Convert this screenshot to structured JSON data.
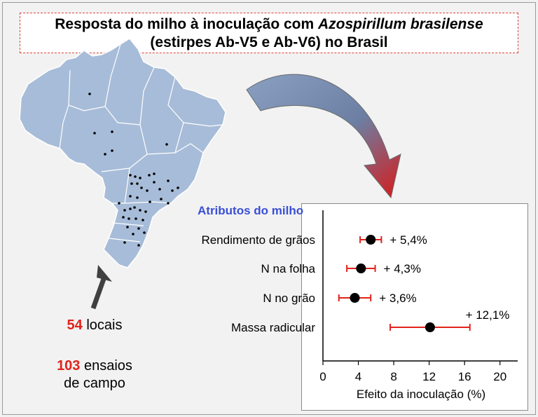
{
  "title": {
    "line1_prefix": "Resposta do milho à inoculação com ",
    "line1_italic": "Azospirillum brasilense",
    "line2": "(estirpes Ab-V5 e Ab-V6) no Brasil"
  },
  "stats": {
    "locais_count": "54",
    "locais_label": " locais",
    "ensaios_count": "103",
    "ensaios_label": " ensaios",
    "ensaios_line2": "de campo"
  },
  "colors": {
    "map_fill": "#a7bcd8",
    "map_border": "#ffffff",
    "heading": "#3a4fd6",
    "error_bar": "#e0231b",
    "highlight_number": "#e0231b",
    "curved_arrow_top": "#7f96b8",
    "curved_arrow_tip": "#d41818",
    "arrow_dark": "#404040"
  },
  "chart_data": {
    "type": "scatter",
    "heading": "Atributos do milho",
    "xlabel": "Efeito da inoculação (%)",
    "xlim": [
      0,
      22
    ],
    "xticks": [
      "0",
      "4",
      "8",
      "12",
      "16",
      "20"
    ],
    "grid": false,
    "points": [
      {
        "label": "Rendimento de grãos",
        "value": 5.4,
        "ci_low": 4.2,
        "ci_high": 6.6,
        "annotation": "+ 5,4%"
      },
      {
        "label": "N na folha",
        "value": 4.3,
        "ci_low": 2.7,
        "ci_high": 5.9,
        "annotation": "+ 4,3%"
      },
      {
        "label": "N no grão",
        "value": 3.6,
        "ci_low": 1.8,
        "ci_high": 5.4,
        "annotation": "+ 3,6%"
      },
      {
        "label": "Massa radicular",
        "value": 12.1,
        "ci_low": 7.6,
        "ci_high": 16.6,
        "annotation": "+ 12,1%"
      }
    ]
  }
}
